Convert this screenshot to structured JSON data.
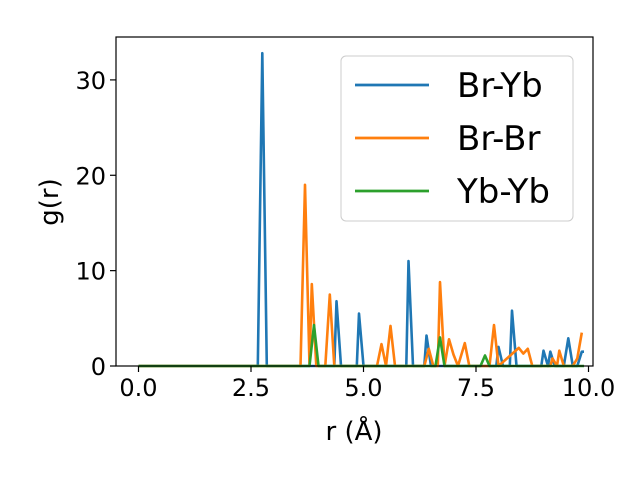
{
  "chart_data": {
    "type": "line",
    "title": "",
    "xlabel": "r (Å)",
    "ylabel": "g(r)",
    "xlim": [
      -0.5,
      10.1
    ],
    "ylim": [
      0,
      34.5
    ],
    "xticks": [
      0.0,
      2.5,
      5.0,
      7.5,
      10.0
    ],
    "xtick_labels": [
      "0.0",
      "2.5",
      "5.0",
      "7.5",
      "10.0"
    ],
    "yticks": [
      0,
      10,
      20,
      30
    ],
    "ytick_labels": [
      "0",
      "10",
      "20",
      "30"
    ],
    "grid": false,
    "legend": "top-right",
    "series": [
      {
        "name": "Br-Yb",
        "color": "#1f77b4",
        "points": [
          [
            0,
            0
          ],
          [
            2.65,
            0
          ],
          [
            2.75,
            32.8
          ],
          [
            2.85,
            0
          ],
          [
            4.35,
            0
          ],
          [
            4.4,
            6.8
          ],
          [
            4.5,
            0
          ],
          [
            4.85,
            0
          ],
          [
            4.9,
            5.5
          ],
          [
            5.0,
            0
          ],
          [
            5.95,
            0
          ],
          [
            6.0,
            11.0
          ],
          [
            6.1,
            0
          ],
          [
            6.35,
            0
          ],
          [
            6.4,
            3.2
          ],
          [
            6.5,
            0
          ],
          [
            7.95,
            0
          ],
          [
            8.0,
            2.0
          ],
          [
            8.1,
            0
          ],
          [
            8.25,
            0
          ],
          [
            8.3,
            5.8
          ],
          [
            8.4,
            0
          ],
          [
            8.95,
            0
          ],
          [
            9.0,
            1.6
          ],
          [
            9.1,
            0
          ],
          [
            9.15,
            1.5
          ],
          [
            9.25,
            0
          ],
          [
            9.45,
            0
          ],
          [
            9.55,
            2.9
          ],
          [
            9.65,
            0
          ],
          [
            9.75,
            0
          ],
          [
            9.85,
            1.5
          ],
          [
            9.9,
            1.5
          ]
        ]
      },
      {
        "name": "Br-Br",
        "color": "#ff7f0e",
        "points": [
          [
            0,
            0
          ],
          [
            3.6,
            0
          ],
          [
            3.7,
            19.0
          ],
          [
            3.8,
            0
          ],
          [
            3.85,
            8.6
          ],
          [
            3.95,
            0
          ],
          [
            4.15,
            0
          ],
          [
            4.25,
            7.5
          ],
          [
            4.35,
            0
          ],
          [
            5.3,
            0
          ],
          [
            5.4,
            2.3
          ],
          [
            5.5,
            0
          ],
          [
            5.6,
            4.2
          ],
          [
            5.7,
            0
          ],
          [
            6.35,
            0
          ],
          [
            6.45,
            1.8
          ],
          [
            6.55,
            0
          ],
          [
            6.65,
            0
          ],
          [
            6.7,
            8.8
          ],
          [
            6.8,
            0
          ],
          [
            6.9,
            2.8
          ],
          [
            7.0,
            1.2
          ],
          [
            7.1,
            0
          ],
          [
            7.25,
            2.4
          ],
          [
            7.35,
            0
          ],
          [
            7.8,
            0
          ],
          [
            7.9,
            4.3
          ],
          [
            8.0,
            0
          ],
          [
            8.45,
            1.9
          ],
          [
            8.55,
            1.3
          ],
          [
            8.65,
            1.8
          ],
          [
            8.75,
            0
          ],
          [
            9.15,
            0
          ],
          [
            9.2,
            0.8
          ],
          [
            9.3,
            0
          ],
          [
            9.35,
            1.6
          ],
          [
            9.45,
            0
          ],
          [
            9.65,
            0
          ],
          [
            9.75,
            0.8
          ],
          [
            9.85,
            3.5
          ]
        ]
      },
      {
        "name": "Yb-Yb",
        "color": "#2ca02c",
        "points": [
          [
            0,
            0
          ],
          [
            3.8,
            0
          ],
          [
            3.9,
            4.3
          ],
          [
            4.0,
            0
          ],
          [
            6.6,
            0
          ],
          [
            6.7,
            3.0
          ],
          [
            6.8,
            0
          ],
          [
            7.6,
            0
          ],
          [
            7.7,
            1.1
          ],
          [
            7.8,
            0
          ],
          [
            9.9,
            0
          ]
        ]
      }
    ]
  }
}
